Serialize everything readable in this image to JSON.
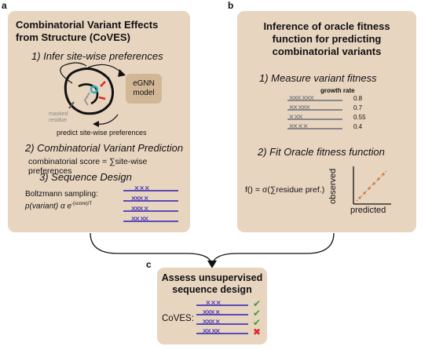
{
  "panels": {
    "a": {
      "label": "a",
      "title_line1": "Combinatorial Variant Effects",
      "title_line2": "from Structure (CoVES)",
      "step1": "1)  Infer site-wise preferences",
      "model_label_1": "eGNN",
      "model_label_2": "model",
      "masked_1": "masked",
      "masked_2": "residue",
      "predict_label": "predict site-wise preferences",
      "step2": "2) Combinatorial Variant Prediction",
      "score_text": "combinatorial score = ∑site-wise preferences",
      "step3": "3) Sequence Design",
      "boltzmann_line1": "Boltzmann sampling:",
      "boltzmann_line2": "p(variant) α e",
      "boltzmann_exp": "-(score)/T",
      "design_rows": [
        "×  ×  ×",
        "×××  ×",
        "×××  ×",
        "××  ××"
      ]
    },
    "b": {
      "label": "b",
      "title_line1": "Inference of oracle fitness",
      "title_line2": "function for predicting",
      "title_line3": "combinatorial variants",
      "step1": "1)  Measure variant fitness",
      "growth_header": "growth rate",
      "growth_rows": [
        {
          "seq": "×××  ×××",
          "value": "0.8"
        },
        {
          "seq": "××  ×××",
          "value": "0.7"
        },
        {
          "seq": "×     ××",
          "value": "0.55"
        },
        {
          "seq": "××  ×  ×",
          "value": "0.4"
        }
      ],
      "step2": "2) Fit Oracle fitness function",
      "formula": "f() = σ(∑residue pref.)",
      "ylabel": "observed",
      "xlabel": "predicted"
    },
    "c": {
      "label": "c",
      "title_line1": "Assess unsupervised",
      "title_line2": "sequence design",
      "method": "CoVES:",
      "rows": [
        {
          "seq": "×  ×  ×",
          "mark": "✔"
        },
        {
          "seq": "×××  ×",
          "mark": "✔"
        },
        {
          "seq": "×××  ×",
          "mark": "✔"
        },
        {
          "seq": "××  ××",
          "mark": "✖"
        }
      ]
    }
  },
  "colors": {
    "panel_bg": "#e8d5c0",
    "sequence_purple": "#5b4bb5",
    "growth_gray": "#888888",
    "check_green": "#3aa12e",
    "cross_red": "#e02424",
    "model_box": "#d2b797",
    "fit_dots": "#e07a2e"
  }
}
